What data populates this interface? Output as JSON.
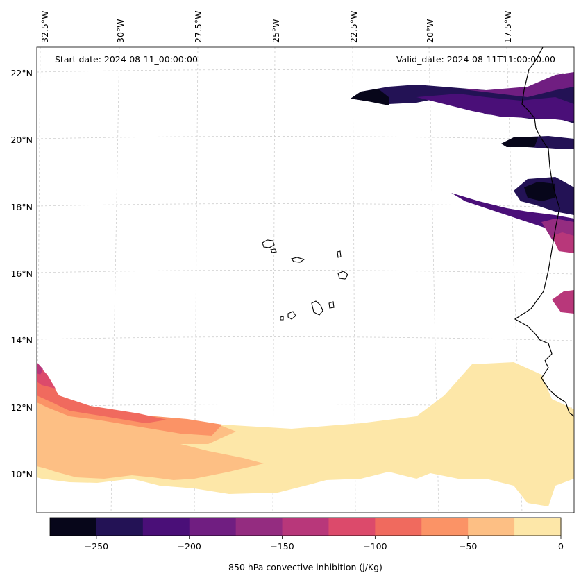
{
  "header": {
    "start_date": "Start date: 2024-08-11_00:00:00",
    "valid_date": "Valid_date: 2024-08-11T11:00:00.00"
  },
  "axes": {
    "lon_labels": [
      "32.5°W",
      "30°W",
      "27.5°W",
      "25°W",
      "22.5°W",
      "20°W",
      "17.5°W"
    ],
    "lat_labels": [
      "22°N",
      "20°N",
      "18°N",
      "16°N",
      "14°N",
      "12°N",
      "10°N"
    ]
  },
  "colorbar": {
    "label": "850 hPa convective inhibition (j/Kg)",
    "ticks": [
      "−250",
      "−200",
      "−150",
      "−100",
      "−50",
      "0"
    ],
    "colors": [
      "#07061a",
      "#231255",
      "#4a0f78",
      "#701e81",
      "#942c80",
      "#b8377a",
      "#dc4a6b",
      "#f06a5e",
      "#fb9366",
      "#fdbf84",
      "#fde7a8"
    ]
  }
}
